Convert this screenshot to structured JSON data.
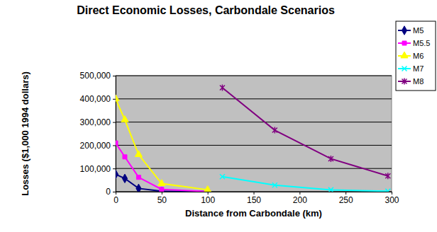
{
  "chart_data": {
    "type": "line",
    "title": "Direct Economic Losses, Carbondale Scenarios",
    "xlabel": "Distance from Carbondale (km)",
    "ylabel": "Losses ($1,000 1994 dollars)",
    "xlim": [
      0,
      300
    ],
    "xticks": [
      0,
      50,
      100,
      150,
      200,
      250,
      300
    ],
    "ylim": [
      0,
      500000
    ],
    "yticks": [
      0,
      {
        "value": 100000,
        "label": "100,000"
      },
      {
        "value": 200000,
        "label": "200,000"
      },
      {
        "value": 300000,
        "label": "300,000"
      },
      {
        "value": 400000,
        "label": "400,000"
      },
      {
        "value": 500000,
        "label": "500,000"
      }
    ],
    "grid": true,
    "legend": "right",
    "series": [
      {
        "name": "M5",
        "color": "#000080",
        "marker": "diamond",
        "x": [
          0,
          10,
          25,
          50,
          100
        ],
        "values": [
          75000,
          57000,
          14000,
          2000,
          500
        ]
      },
      {
        "name": "M5.5",
        "color": "#ff00ff",
        "marker": "square",
        "x": [
          0,
          10,
          25,
          50,
          100
        ],
        "values": [
          210000,
          150000,
          62000,
          10000,
          1000
        ]
      },
      {
        "name": "M6",
        "color": "#ffff00",
        "marker": "triangle",
        "x": [
          0,
          10,
          25,
          50,
          100
        ],
        "values": [
          400000,
          310000,
          160000,
          35000,
          8000
        ]
      },
      {
        "name": "M7",
        "color": "#00ffff",
        "marker": "x",
        "x": [
          116,
          173,
          234,
          296
        ],
        "values": [
          65000,
          28000,
          8000,
          2000
        ]
      },
      {
        "name": "M8",
        "color": "#800080",
        "marker": "star",
        "x": [
          116,
          173,
          234,
          296
        ],
        "values": [
          448000,
          265000,
          142000,
          68000
        ]
      }
    ]
  }
}
